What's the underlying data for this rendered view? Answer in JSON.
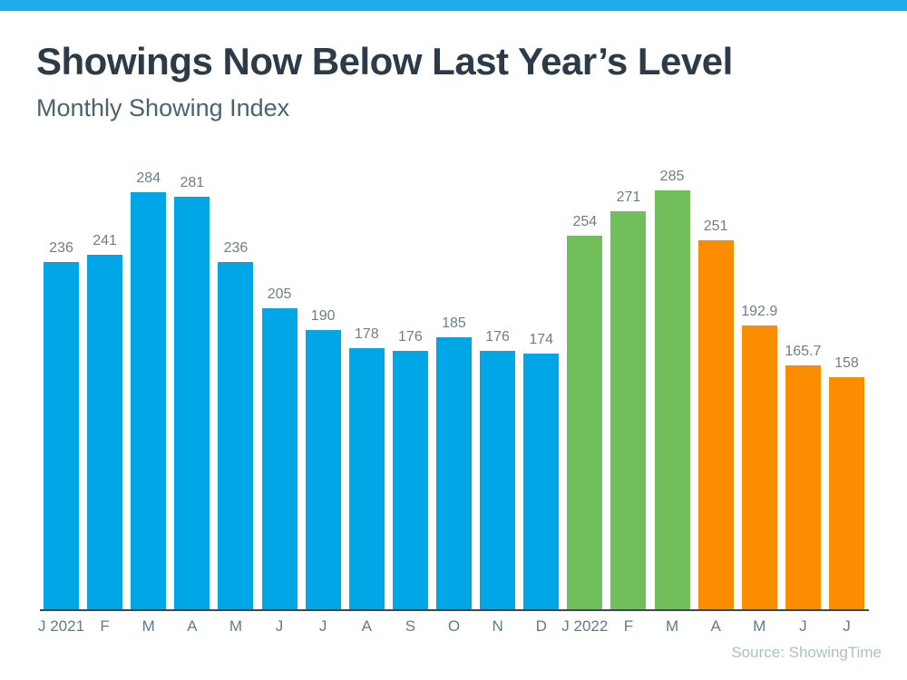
{
  "header": {
    "title": "Showings Now Below Last Year’s Level",
    "subtitle": "Monthly Showing Index"
  },
  "accent": {
    "top_bar_color": "#1fabeb"
  },
  "chart_data": {
    "type": "bar",
    "title": "Showings Now Below Last Year’s Level",
    "subtitle": "Monthly Showing Index",
    "categories": [
      "J 2021",
      "F",
      "M",
      "A",
      "M",
      "J",
      "J",
      "A",
      "S",
      "O",
      "N",
      "D",
      "J 2022",
      "F",
      "M",
      "A",
      "M",
      "J",
      "J"
    ],
    "values": [
      236,
      241,
      284,
      281,
      236,
      205,
      190,
      178,
      176,
      185,
      176,
      174,
      254,
      271,
      285,
      251,
      192.9,
      165.7,
      158
    ],
    "value_labels": [
      "236",
      "241",
      "284",
      "281",
      "236",
      "205",
      "190",
      "178",
      "176",
      "185",
      "176",
      "174",
      "254",
      "271",
      "285",
      "251",
      "192.9",
      "165.7",
      "158"
    ],
    "groups": [
      "y2021",
      "y2021",
      "y2021",
      "y2021",
      "y2021",
      "y2021",
      "y2021",
      "y2021",
      "y2021",
      "y2021",
      "y2021",
      "y2021",
      "y2022_rise",
      "y2022_rise",
      "y2022_rise",
      "y2022_fall",
      "y2022_fall",
      "y2022_fall",
      "y2022_fall"
    ],
    "group_colors": {
      "y2021": "#00a6e6",
      "y2022_rise": "#70bf5a",
      "y2022_fall": "#fb8c00"
    },
    "xlabel": "",
    "ylabel": "",
    "ylim": [
      0,
      285
    ],
    "grid": false,
    "legend": "none",
    "value_label_color": "#6e7e88",
    "tick_label_color": "#5e7c8b",
    "axis_line_color": "#3a4a52"
  },
  "footer": {
    "source": "Source: ShowingTime"
  }
}
